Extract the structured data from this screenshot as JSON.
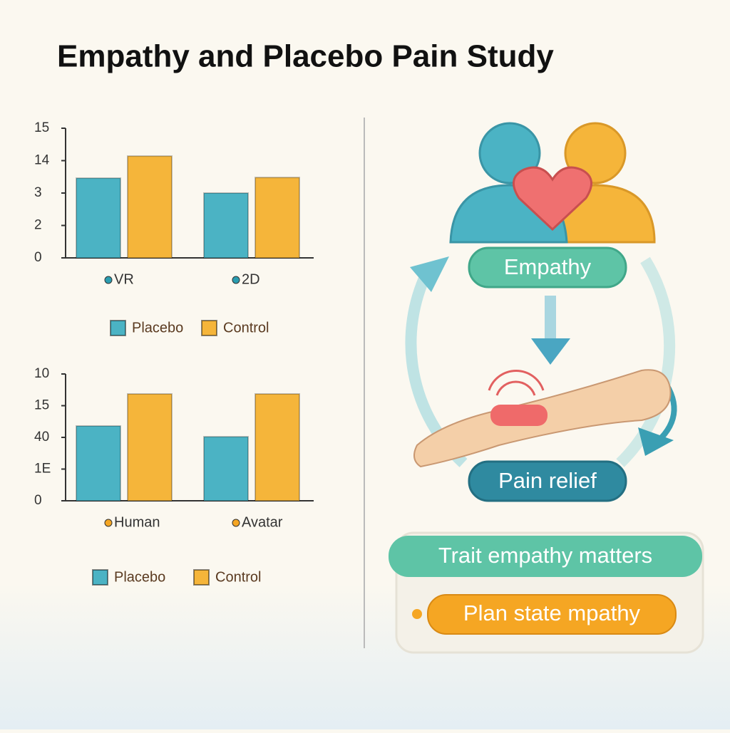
{
  "title": "Empathy and Placebo Pain Study",
  "chart_data": [
    {
      "type": "bar",
      "categories": [
        "VR",
        "2D"
      ],
      "series": [
        {
          "name": "Placebo",
          "color": "#4bb3c4",
          "values": [
            2.46,
            2.0
          ]
        },
        {
          "name": "Control",
          "color": "#f5b53a",
          "values": [
            3.14,
            2.48
          ]
        }
      ],
      "ylim": [
        0,
        4
      ],
      "yticks": [
        0,
        {
          "value": 1,
          "label": "2"
        },
        {
          "value": 2,
          "label": "3"
        },
        {
          "value": 3,
          "label": "14"
        },
        {
          "value": 4,
          "label": "15"
        }
      ]
    },
    {
      "type": "bar",
      "categories": [
        "Human",
        "Avatar"
      ],
      "series": [
        {
          "name": "Placebo",
          "color": "#4bb3c4",
          "values": [
            2.36,
            2.02
          ]
        },
        {
          "name": "Control",
          "color": "#f5b53a",
          "values": [
            3.37,
            3.37
          ]
        }
      ],
      "ylim": [
        0,
        4
      ],
      "yticks": [
        0,
        {
          "value": 1,
          "label": "1E"
        },
        {
          "value": 2,
          "label": "40"
        },
        {
          "value": 3,
          "label": "15"
        },
        {
          "value": 4,
          "label": "10"
        }
      ]
    }
  ],
  "diagram": {
    "empathy": "Empathy",
    "pain_relief": "Pain relief",
    "trait": "Trait empathy matters",
    "state": "Plan state mpathy"
  }
}
